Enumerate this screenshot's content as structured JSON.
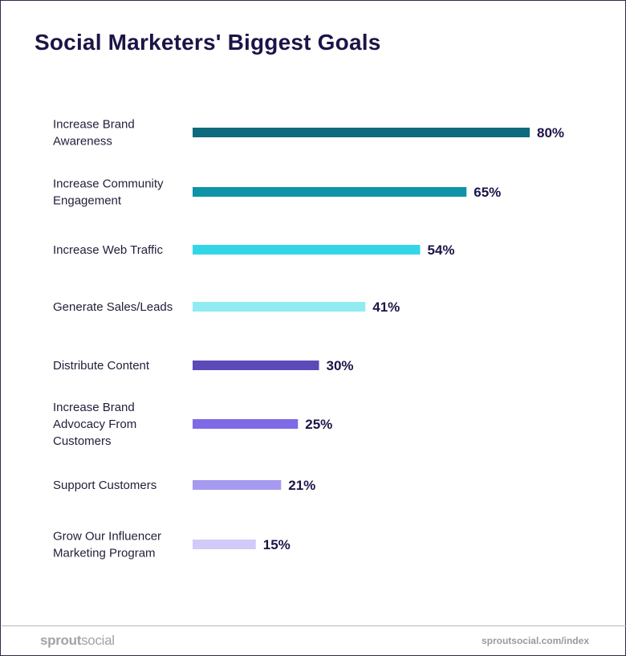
{
  "chart_data": {
    "type": "bar",
    "orientation": "horizontal",
    "title": "Social Marketers' Biggest Goals",
    "categories": [
      [
        "Increase Brand",
        "Awareness"
      ],
      [
        "Increase Community",
        "Engagement"
      ],
      [
        "Increase Web Traffic"
      ],
      [
        "Generate Sales/Leads"
      ],
      [
        "Distribute Content"
      ],
      [
        "Increase Brand",
        "Advocacy From",
        "Customers"
      ],
      [
        "Support Customers"
      ],
      [
        "Grow Our Influencer",
        "Marketing Program"
      ]
    ],
    "values": [
      80,
      65,
      54,
      41,
      30,
      25,
      21,
      15
    ],
    "value_labels": [
      "80%",
      "65%",
      "54%",
      "41%",
      "30%",
      "25%",
      "21%",
      "15%"
    ],
    "colors": [
      "#0e6b7d",
      "#0e93a7",
      "#33d6e6",
      "#90ecf2",
      "#5c4ab8",
      "#7f6ae6",
      "#a59af0",
      "#d0cbf9"
    ],
    "xlim": [
      0,
      80
    ],
    "grid": false,
    "legend": "none"
  },
  "footer": {
    "brand_part1": "sprout",
    "brand_part2": "social",
    "url": "sproutsocial.com/index"
  }
}
